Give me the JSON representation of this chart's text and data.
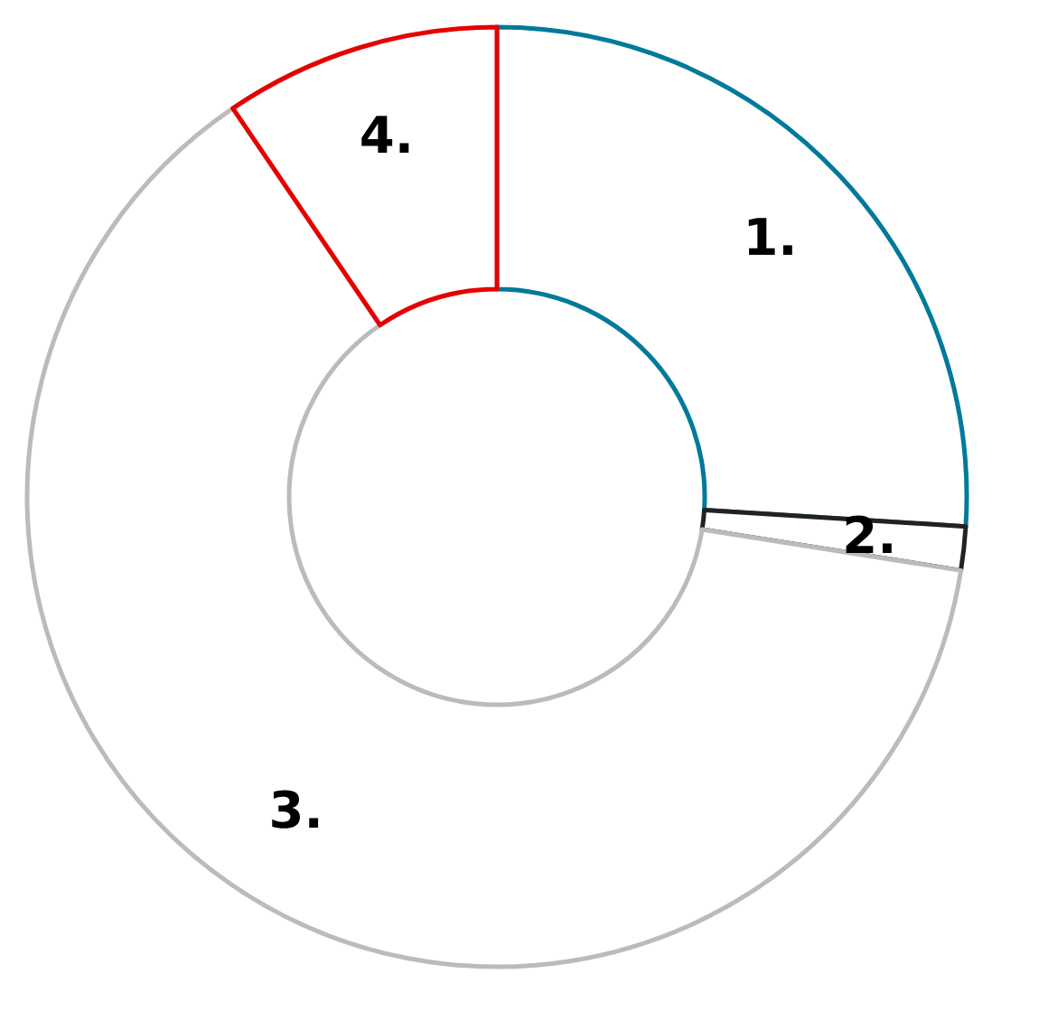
{
  "chart_data": {
    "type": "donut",
    "categories": [
      "1.",
      "2.",
      "3.",
      "4."
    ],
    "values": [
      26,
      1.5,
      63,
      9.5
    ],
    "colors": [
      "#007a99",
      "#222222",
      "#bbbbbb",
      "#e60000"
    ],
    "legend": false
  }
}
